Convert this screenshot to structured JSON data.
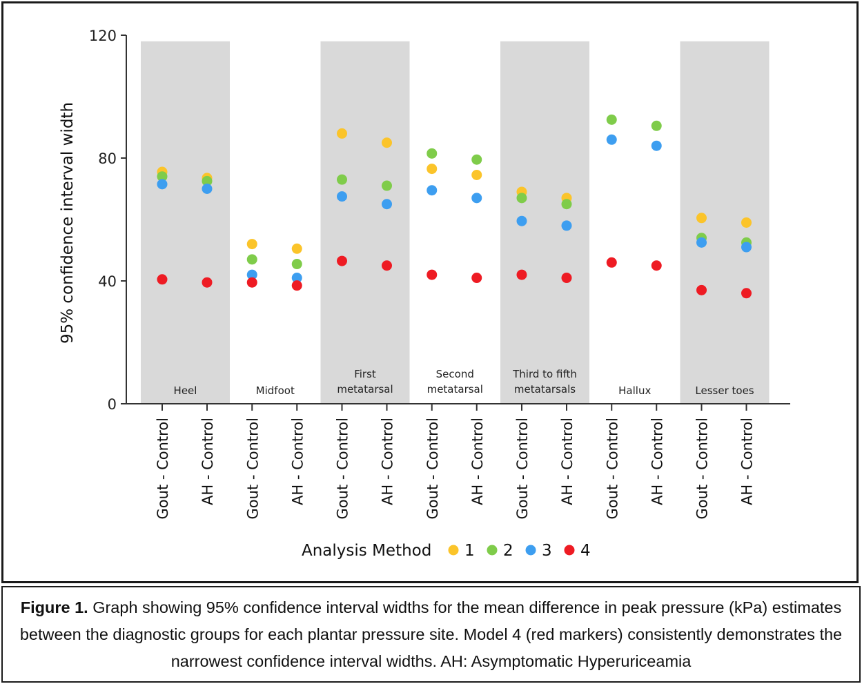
{
  "chart_data": {
    "type": "scatter",
    "ylabel": "95% confidence interval width",
    "ylim": [
      0,
      120
    ],
    "yticks": [
      0,
      40,
      80,
      120
    ],
    "groups": [
      {
        "label": [
          "Heel"
        ],
        "shaded": true,
        "comparisons": [
          "Gout - Control",
          "AH - Control"
        ]
      },
      {
        "label": [
          "Midfoot"
        ],
        "shaded": false,
        "comparisons": [
          "Gout - Control",
          "AH - Control"
        ]
      },
      {
        "label": [
          "First",
          "metatarsal"
        ],
        "shaded": true,
        "comparisons": [
          "Gout - Control",
          "AH - Control"
        ]
      },
      {
        "label": [
          "Second",
          "metatarsal"
        ],
        "shaded": false,
        "comparisons": [
          "Gout - Control",
          "AH - Control"
        ]
      },
      {
        "label": [
          "Third to fifth",
          "metatarsals"
        ],
        "shaded": true,
        "comparisons": [
          "Gout - Control",
          "AH - Control"
        ]
      },
      {
        "label": [
          "Hallux"
        ],
        "shaded": false,
        "comparisons": [
          "Gout - Control",
          "AH - Control"
        ]
      },
      {
        "label": [
          "Lesser toes"
        ],
        "shaded": true,
        "comparisons": [
          "Gout - Control",
          "AH - Control"
        ]
      }
    ],
    "series": [
      {
        "name": "1",
        "color": "#fbc42a",
        "values": [
          75.5,
          73.5,
          52,
          50.5,
          88,
          85,
          76.5,
          74.5,
          69,
          67,
          null,
          null,
          60.5,
          59
        ]
      },
      {
        "name": "2",
        "color": "#7fcc4a",
        "values": [
          74,
          72.5,
          47,
          45.5,
          73,
          71,
          81.5,
          79.5,
          67,
          65,
          92.5,
          90.5,
          54,
          52.5
        ]
      },
      {
        "name": "3",
        "color": "#3d9ef0",
        "values": [
          71.5,
          70,
          42,
          41,
          67.5,
          65,
          69.5,
          67,
          59.5,
          58,
          86,
          84,
          52.5,
          51
        ]
      },
      {
        "name": "4",
        "color": "#ee1b23",
        "values": [
          40.5,
          39.5,
          39.5,
          38.5,
          46.5,
          45,
          42,
          41,
          42,
          41,
          46,
          45,
          37,
          36
        ]
      }
    ],
    "legend": {
      "title": "Analysis Method",
      "position": "bottom"
    }
  },
  "caption": {
    "label": "Figure 1.",
    "text": " Graph showing 95% confidence interval widths for the mean difference in peak pressure (kPa) estimates between the diagnostic groups for each plantar pressure site. Model 4 (red markers) consistently demonstrates the narrowest confidence interval widths. AH: Asymptomatic Hyperuriceamia"
  }
}
